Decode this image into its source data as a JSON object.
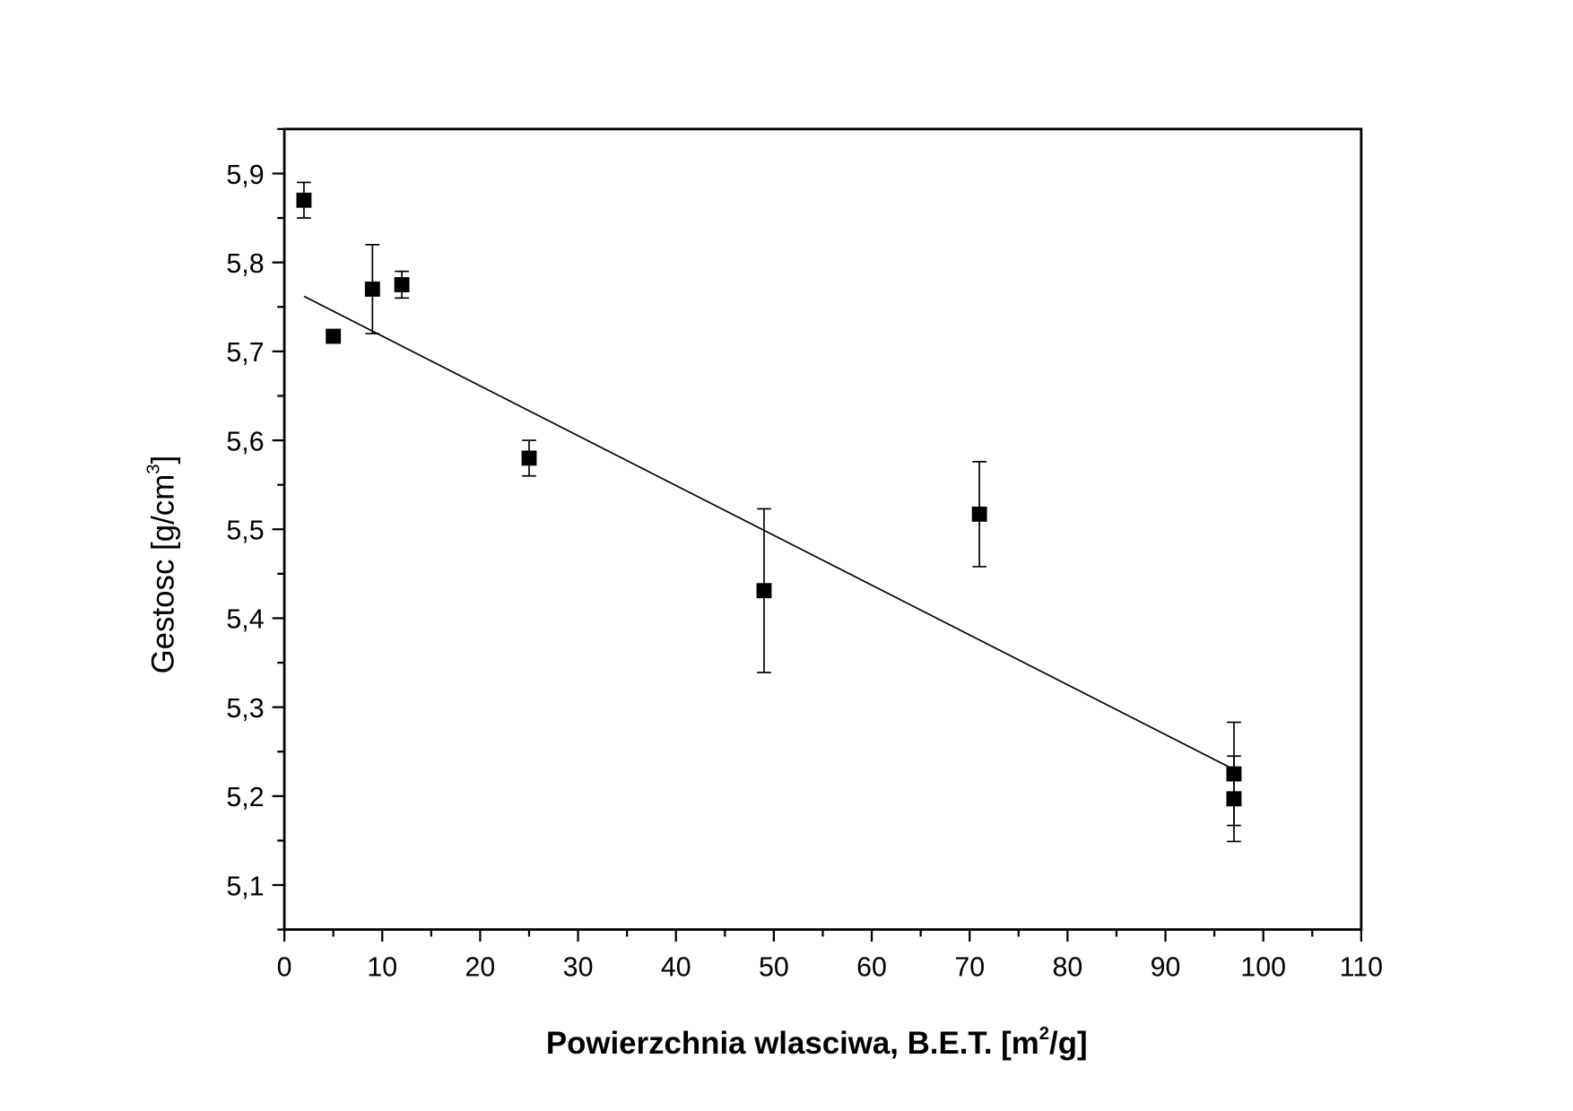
{
  "chart_data": {
    "type": "scatter",
    "title": "",
    "xlabel": "Powierzchnia wlasciwa, B.E.T. [m²/g]",
    "xlabel_parts": {
      "pre": "Powierzchnia wlasciwa, B.E.T. [m",
      "sup": "2",
      "post": "/g]"
    },
    "ylabel": "Gestosc [g/cm³]",
    "ylabel_parts": {
      "pre": "Gestosc [g/cm",
      "sup": "3",
      "post": "]"
    },
    "xlim": [
      0,
      110
    ],
    "ylim": [
      5.05,
      5.95
    ],
    "xticks": [
      "0",
      "10",
      "20",
      "30",
      "40",
      "50",
      "60",
      "70",
      "80",
      "90",
      "100",
      "110"
    ],
    "yticks": [
      "5,1",
      "5,2",
      "5,3",
      "5,4",
      "5,5",
      "5,6",
      "5,7",
      "5,8",
      "5,9"
    ],
    "grid": false,
    "marker": "square",
    "color": "#000000",
    "points": [
      {
        "x": 2,
        "y": 5.87,
        "err": 0.02
      },
      {
        "x": 5,
        "y": 5.717,
        "err": 0.005
      },
      {
        "x": 9,
        "y": 5.77,
        "err": 0.05
      },
      {
        "x": 12,
        "y": 5.775,
        "err": 0.015
      },
      {
        "x": 25,
        "y": 5.58,
        "err": 0.02
      },
      {
        "x": 49,
        "y": 5.431,
        "err": 0.092
      },
      {
        "x": 71,
        "y": 5.517,
        "err": 0.059
      },
      {
        "x": 97,
        "y": 5.225,
        "err": 0.058
      },
      {
        "x": 97,
        "y": 5.197,
        "err": 0.048
      }
    ],
    "fit_line": {
      "x": [
        2,
        97
      ],
      "y": [
        5.762,
        5.23
      ]
    }
  }
}
